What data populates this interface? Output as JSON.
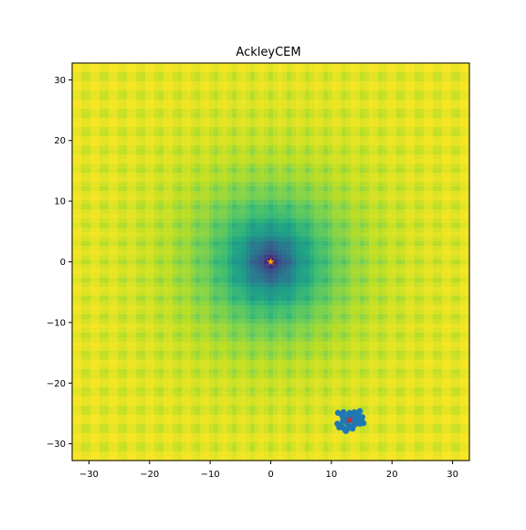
{
  "chart_data": {
    "type": "heatmap",
    "title": "AckleyCEM",
    "xlabel": "",
    "ylabel": "",
    "xlim": [
      -32.768,
      32.768
    ],
    "ylim": [
      -32.768,
      32.768
    ],
    "x_ticks": [
      -30,
      -20,
      -10,
      0,
      10,
      20,
      30
    ],
    "y_ticks": [
      -30,
      -20,
      -10,
      0,
      10,
      20,
      30
    ],
    "x_tick_labels": [
      "−30",
      "−20",
      "−10",
      "0",
      "10",
      "20",
      "30"
    ],
    "y_tick_labels": [
      "−30",
      "−20",
      "−10",
      "0",
      "10",
      "20",
      "30"
    ],
    "grid": false,
    "colormap": "viridis",
    "function": "ackley",
    "global_minimum": {
      "x": 0,
      "y": 0,
      "marker": "star",
      "color": "#ffa500"
    },
    "population_color": "#1f77b4",
    "population": [
      [
        11.1,
        -24.9
      ],
      [
        12.0,
        -24.8
      ],
      [
        13.0,
        -24.9
      ],
      [
        13.8,
        -24.8
      ],
      [
        14.7,
        -24.6
      ],
      [
        11.8,
        -25.4
      ],
      [
        12.8,
        -25.3
      ],
      [
        13.6,
        -25.5
      ],
      [
        14.4,
        -25.2
      ],
      [
        15.1,
        -25.6
      ],
      [
        12.2,
        -26.0
      ],
      [
        13.3,
        -26.1
      ],
      [
        14.2,
        -26.0
      ],
      [
        15.0,
        -26.2
      ],
      [
        15.3,
        -26.6
      ],
      [
        11.0,
        -26.7
      ],
      [
        11.6,
        -26.9
      ],
      [
        12.6,
        -26.6
      ],
      [
        13.9,
        -26.8
      ],
      [
        14.7,
        -26.7
      ],
      [
        11.3,
        -27.3
      ],
      [
        12.1,
        -27.5
      ],
      [
        12.9,
        -27.4
      ],
      [
        13.5,
        -27.5
      ],
      [
        12.4,
        -27.9
      ],
      [
        13.2,
        -27.1
      ],
      [
        11.9,
        -26.2
      ],
      [
        14.5,
        -26.5
      ],
      [
        13.7,
        -25.9
      ],
      [
        12.7,
        -25.7
      ]
    ],
    "population_mean": {
      "x": 13.0,
      "y": -26.1,
      "marker": "x",
      "color": "#d62728"
    }
  }
}
